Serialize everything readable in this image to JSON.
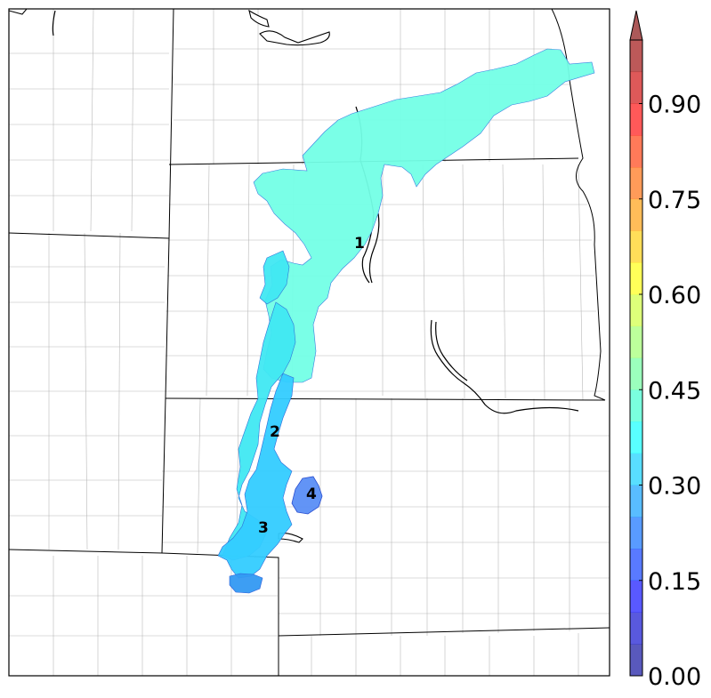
{
  "map": {
    "frame": "state-and-county-boundary-map",
    "region_labels": [
      "1",
      "2",
      "3",
      "4"
    ]
  },
  "layers": [
    {
      "name": "plume-main",
      "value_band": "0.40-0.45",
      "color": "#73ffe6"
    },
    {
      "name": "plume-southern",
      "value_band": "0.35-0.40",
      "color": "#40e8f2"
    },
    {
      "name": "plume-core",
      "value_band": "0.30-0.35",
      "color": "#33ccff"
    },
    {
      "name": "plume-tip",
      "value_band": "0.25-0.30",
      "color": "#3399f2"
    },
    {
      "name": "region-4-blob",
      "value_band": "0.20-0.25",
      "color": "#5a8ef5"
    }
  ],
  "colorbar": {
    "min": 0.0,
    "max": 1.0,
    "step": 0.05,
    "extend": "max",
    "colormap": "jet (alpha)",
    "tick_values": [
      0.0,
      0.15,
      0.3,
      0.45,
      0.6,
      0.75,
      0.9
    ],
    "tick_labels": [
      "0.00",
      "0.15",
      "0.30",
      "0.45",
      "0.60",
      "0.75",
      "0.90"
    ]
  }
}
